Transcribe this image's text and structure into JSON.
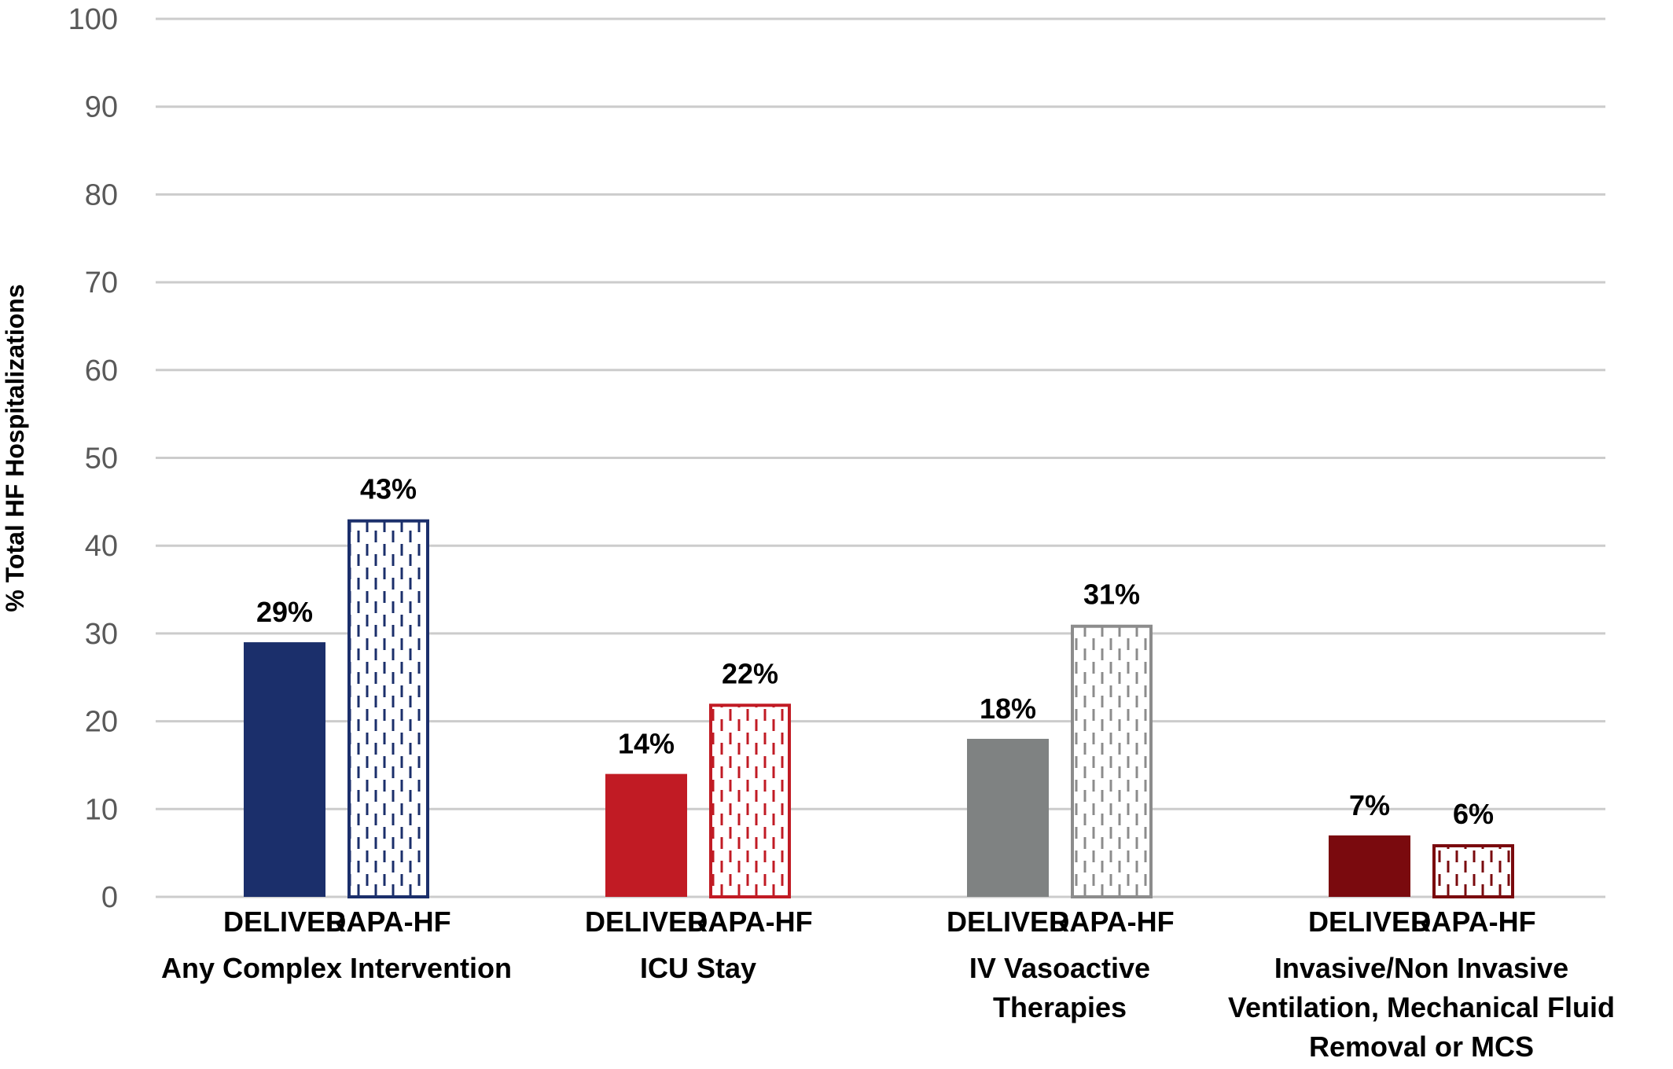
{
  "chart_data": {
    "type": "bar",
    "ylabel": "% Total HF Hospitalizations",
    "ylim": [
      0,
      100
    ],
    "yticks": [
      "0",
      "10",
      "20",
      "30",
      "40",
      "50",
      "60",
      "70",
      "80",
      "90",
      "100"
    ],
    "grid": true,
    "groups": [
      {
        "label_lines": [
          "Any Complex Intervention"
        ],
        "bars": [
          {
            "series": "DELIVER",
            "value": 29,
            "label": "29%",
            "style": "solid",
            "color": "#1b2f6b"
          },
          {
            "series": "DAPA-HF",
            "value": 43,
            "label": "43%",
            "style": "dashed",
            "color": "#1b2f6b"
          }
        ]
      },
      {
        "label_lines": [
          "ICU Stay"
        ],
        "bars": [
          {
            "series": "DELIVER",
            "value": 14,
            "label": "14%",
            "style": "solid",
            "color": "#c11b24"
          },
          {
            "series": "DAPA-HF",
            "value": 22,
            "label": "22%",
            "style": "dashed",
            "color": "#c11b24"
          }
        ]
      },
      {
        "label_lines": [
          "IV Vasoactive",
          "Therapies"
        ],
        "bars": [
          {
            "series": "DELIVER",
            "value": 18,
            "label": "18%",
            "style": "solid",
            "color": "#7f8282"
          },
          {
            "series": "DAPA-HF",
            "value": 31,
            "label": "31%",
            "style": "dashed",
            "color": "#8c8c8c"
          }
        ]
      },
      {
        "label_lines": [
          "Invasive/Non Invasive",
          "Ventilation, Mechanical Fluid",
          "Removal or MCS"
        ],
        "bars": [
          {
            "series": "DELIVER",
            "value": 7,
            "label": "7%",
            "style": "solid",
            "color": "#7a0a0e"
          },
          {
            "series": "DAPA-HF",
            "value": 6,
            "label": "6%",
            "style": "dashed",
            "color": "#7a0a0e"
          }
        ]
      }
    ]
  }
}
